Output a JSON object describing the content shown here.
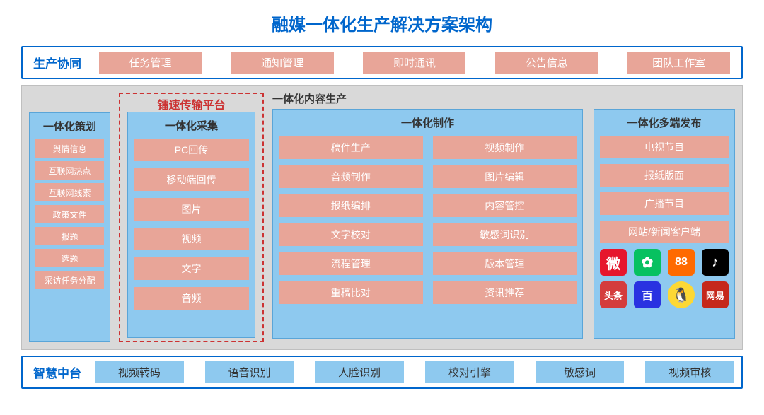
{
  "title": "融媒一体化生产解决方案架构",
  "colors": {
    "title": "#0066cc",
    "border": "#0066cc",
    "pill_bg": "#e8a598",
    "pill_text": "#ffffff",
    "blue_pill_bg": "#8ec9ef",
    "middle_bg": "#d9d9d9",
    "dashed_border": "#cc3333"
  },
  "top_row": {
    "label": "生产协同",
    "items": [
      "任务管理",
      "通知管理",
      "即时通讯",
      "公告信息",
      "团队工作室"
    ]
  },
  "middle": {
    "planning": {
      "title": "一体化策划",
      "items": [
        "舆情信息",
        "互联网热点",
        "互联网线索",
        "政策文件",
        "报题",
        "选题",
        "采访任务分配"
      ]
    },
    "transfer_platform_label": "镭速传输平台",
    "collection": {
      "title": "一体化采集",
      "items": [
        "PC回传",
        "移动端回传",
        "图片",
        "视频",
        "文字",
        "音频"
      ]
    },
    "content_production_label": "一体化内容生产",
    "making": {
      "title": "一体化制作",
      "items": [
        "稿件生产",
        "视频制作",
        "音频制作",
        "图片编辑",
        "报纸编排",
        "内容管控",
        "文字校对",
        "敏感词识别",
        "流程管理",
        "版本管理",
        "重稿比对",
        "资讯推荐"
      ]
    },
    "publish": {
      "title": "一体化多端发布",
      "items": [
        "电视节目",
        "报纸版面",
        "广播节目",
        "网站/新闻客户端"
      ],
      "icons_row1": [
        {
          "name": "weibo-icon",
          "glyph": "微",
          "class": "ic-weibo"
        },
        {
          "name": "wechat-icon",
          "glyph": "✿",
          "class": "ic-wechat"
        },
        {
          "name": "app-icon",
          "glyph": "88",
          "class": "ic-qq"
        },
        {
          "name": "douyin-icon",
          "glyph": "♪",
          "class": "ic-douyin"
        }
      ],
      "icons_row2": [
        {
          "name": "toutiao-icon",
          "glyph": "头条",
          "class": "ic-toutiao"
        },
        {
          "name": "baidu-icon",
          "glyph": "百",
          "class": "ic-baidu"
        },
        {
          "name": "penguin-icon",
          "glyph": "🐧",
          "class": "ic-penguin"
        },
        {
          "name": "netease-icon",
          "glyph": "网易",
          "class": "ic-netease"
        }
      ]
    }
  },
  "bottom_row": {
    "label": "智慧中台",
    "items": [
      "视频转码",
      "语音识别",
      "人脸识别",
      "校对引擎",
      "敏感词",
      "视频审核"
    ]
  }
}
